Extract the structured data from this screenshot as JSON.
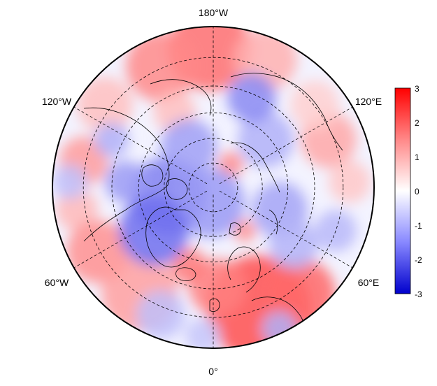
{
  "map": {
    "projection": "north-polar-stereographic",
    "color_scale": "blue-white-red",
    "colors": {
      "low": "#0000cc",
      "mid": "#ffffff",
      "high": "#ff0000",
      "outline": "#000000"
    },
    "longitude_labels": [
      {
        "text": "180°W",
        "lon": 180
      },
      {
        "text": "120°E",
        "lon": 120
      },
      {
        "text": "60°E",
        "lon": 60
      },
      {
        "text": "0°",
        "lon": 0
      },
      {
        "text": "60°W",
        "lon": -60
      },
      {
        "text": "120°W",
        "lon": -120
      }
    ],
    "meridian_longitudes": [
      0,
      60,
      120,
      180,
      240,
      300
    ],
    "latitude_circles": [
      40,
      50,
      60,
      70,
      80
    ],
    "grid": true
  },
  "colorbar": {
    "min": -3,
    "max": 3,
    "ticks": [
      "3",
      "2",
      "1",
      "0",
      "-1",
      "-2",
      "-3"
    ]
  }
}
